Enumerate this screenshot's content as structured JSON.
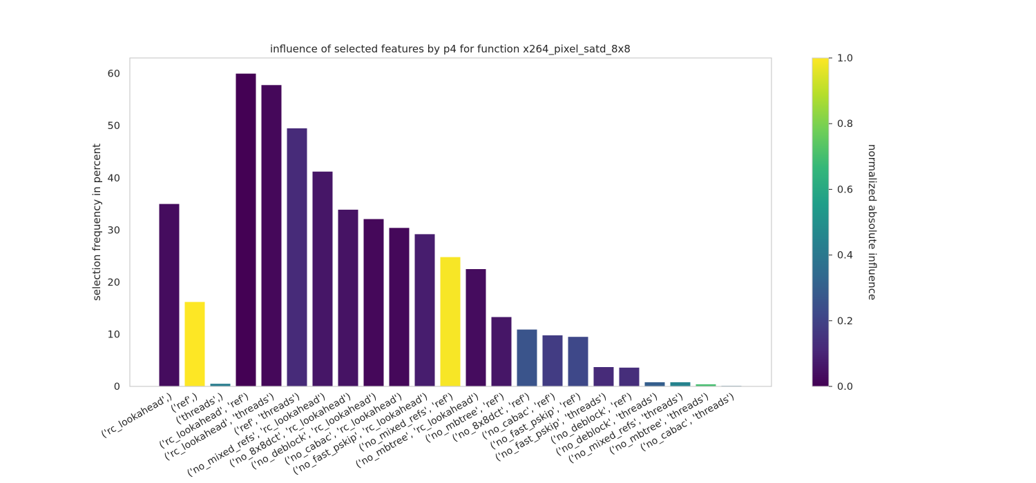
{
  "chart_data": {
    "type": "bar",
    "title": "influence of selected features by p4 for function x264_pixel_satd_8x8",
    "xlabel": "",
    "ylabel": "selection frequency in percent",
    "ylim": [
      0,
      63
    ],
    "yticks": [
      0,
      10,
      20,
      30,
      40,
      50,
      60
    ],
    "grid": false,
    "categories": [
      "('rc_lookahead',)",
      "('ref',)",
      "('threads',)",
      "('rc_lookahead', 'ref')",
      "('rc_lookahead', 'threads')",
      "('ref', 'threads')",
      "('no_mixed_refs', 'rc_lookahead')",
      "('no_8x8dct', 'rc_lookahead')",
      "('no_deblock', 'rc_lookahead')",
      "('no_cabac', 'rc_lookahead')",
      "('no_fast_pskip', 'rc_lookahead')",
      "('no_mixed_refs', 'ref')",
      "('no_mbtree', 'rc_lookahead')",
      "('no_mbtree', 'ref')",
      "('no_8x8dct', 'ref')",
      "('no_cabac', 'ref')",
      "('no_fast_pskip', 'ref')",
      "('no_fast_pskip', 'threads')",
      "('no_deblock', 'ref')",
      "('no_deblock', 'threads')",
      "('no_mixed_refs', 'threads')",
      "('no_mbtree', 'threads')",
      "('no_cabac', 'threads')"
    ],
    "values": [
      35.0,
      16.2,
      0.5,
      60.0,
      57.8,
      49.5,
      41.2,
      33.9,
      32.1,
      30.4,
      29.2,
      24.8,
      22.5,
      13.3,
      10.9,
      9.8,
      9.5,
      3.7,
      3.6,
      0.8,
      0.8,
      0.4,
      0.1
    ],
    "influence": [
      0.03,
      1.0,
      0.42,
      0.0,
      0.02,
      0.12,
      0.06,
      0.05,
      0.02,
      0.02,
      0.08,
      0.99,
      0.03,
      0.06,
      0.26,
      0.18,
      0.22,
      0.12,
      0.13,
      0.3,
      0.45,
      0.7,
      0.33
    ],
    "colorbar": {
      "label": "normalized absolute influence",
      "range": [
        0,
        1
      ],
      "ticks": [
        0.0,
        0.2,
        0.4,
        0.6,
        0.8,
        1.0
      ],
      "tick_labels": [
        "0.0",
        "0.2",
        "0.4",
        "0.6",
        "0.8",
        "1.0"
      ],
      "colormap": "viridis",
      "stops": [
        "#440154",
        "#482878",
        "#3e4989",
        "#31688e",
        "#26828e",
        "#1f9e89",
        "#35b779",
        "#6ece58",
        "#b5de2b",
        "#fde725"
      ]
    }
  }
}
